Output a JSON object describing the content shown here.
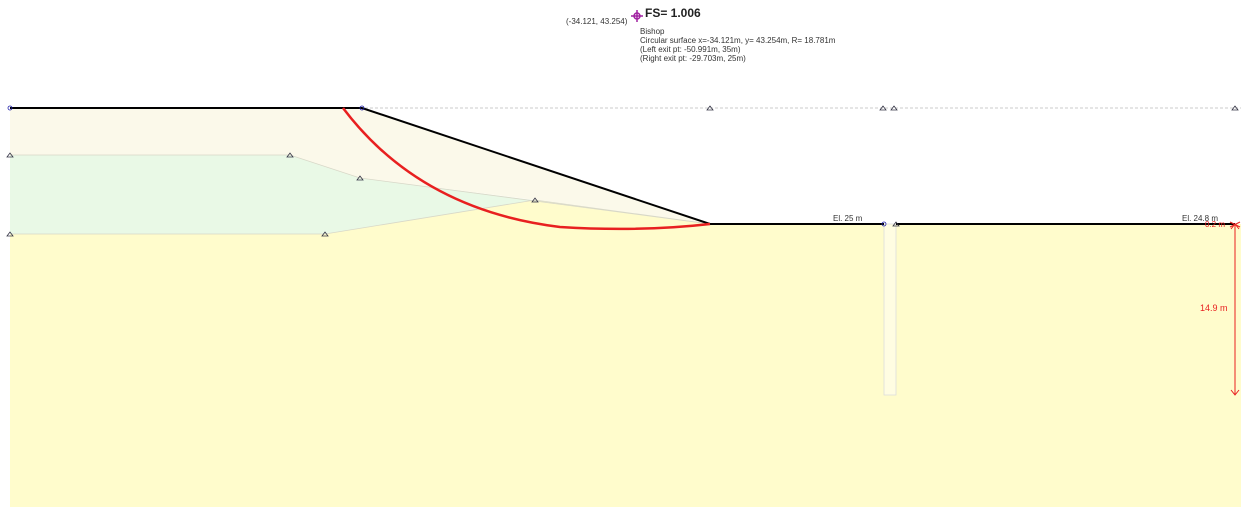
{
  "center_label": "(-34.121, 43.254)",
  "result": {
    "fs": "FS= 1.006",
    "method": "Bishop",
    "surface": "Circular surface x=-34.121m, y= 43.254m, R= 18.781m",
    "left_exit": "(Left exit pt: -50.991m, 35m)",
    "right_exit": "(Right exit pt: -29.703m, 25m)"
  },
  "elevations": [
    "El. 25 m",
    "El. 24.8 m"
  ],
  "dimensions": [
    "0.2 m",
    "14.9 m"
  ]
}
